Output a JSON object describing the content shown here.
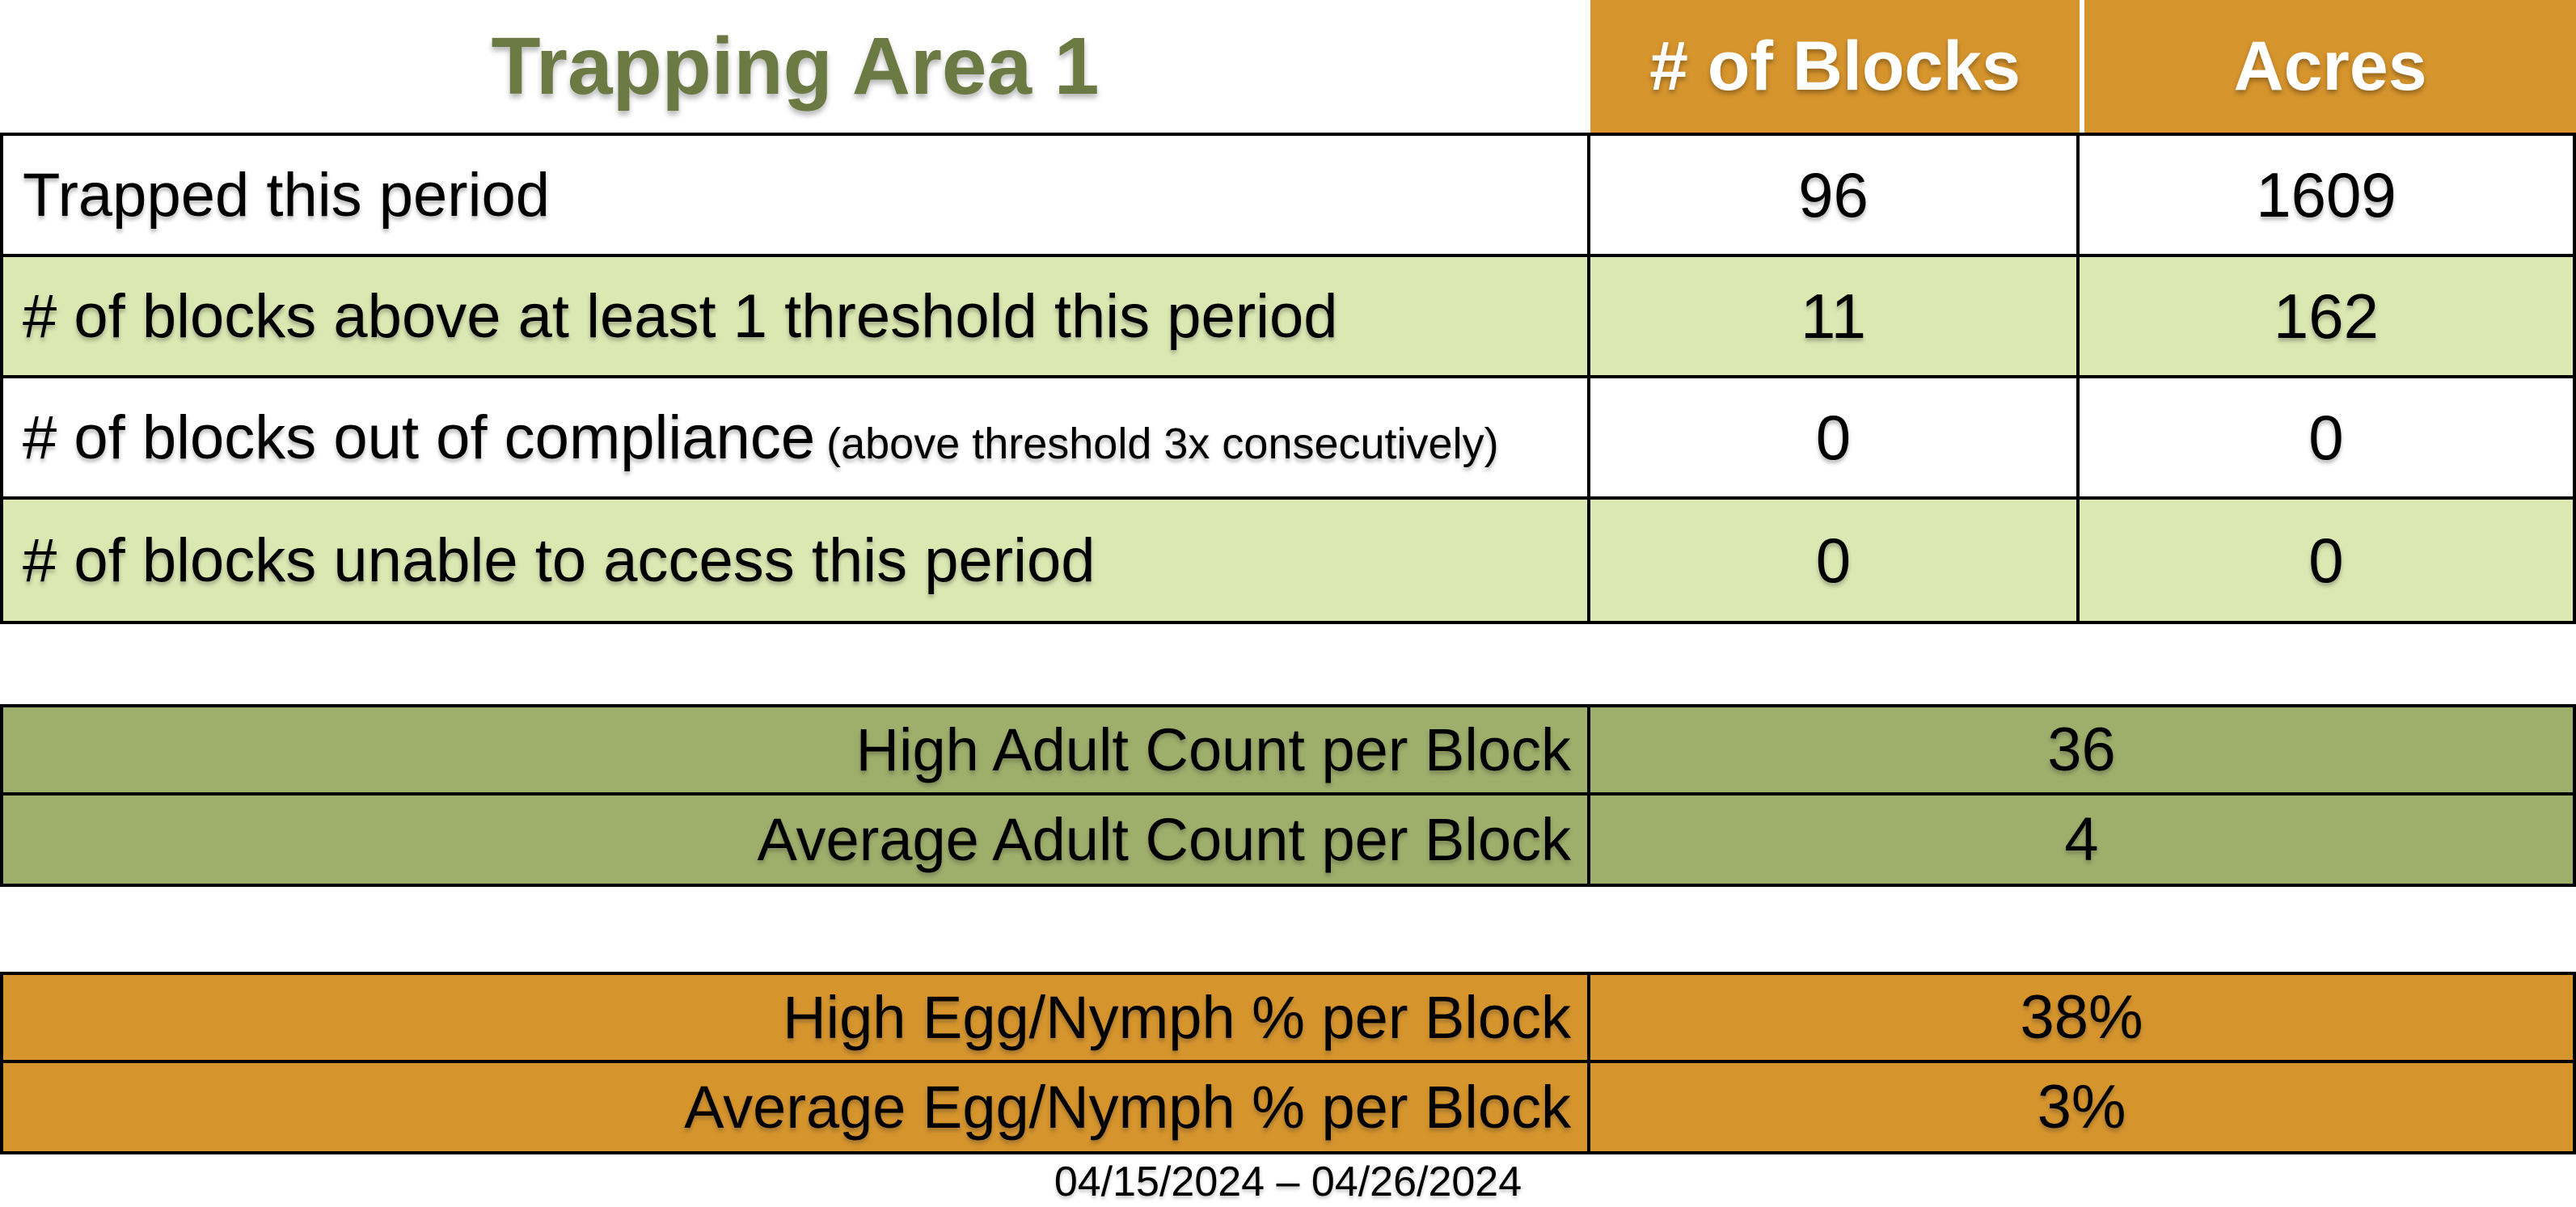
{
  "title": "Trapping Area 1",
  "columns": {
    "blocks": "# of Blocks",
    "acres": "Acres"
  },
  "main_table": {
    "rows": [
      {
        "label": "Trapped this period",
        "note": "",
        "blocks": "96",
        "acres": "1609"
      },
      {
        "label": "# of blocks above at least 1 threshold this period",
        "note": "",
        "blocks": "11",
        "acres": "162"
      },
      {
        "label": "# of blocks out of compliance",
        "note": "(above threshold 3x consecutively)",
        "blocks": "0",
        "acres": "0"
      },
      {
        "label": "# of blocks unable to access this period",
        "note": "",
        "blocks": "0",
        "acres": "0"
      }
    ]
  },
  "adult_table": {
    "rows": [
      {
        "label": "High Adult Count per Block",
        "value": "36"
      },
      {
        "label": "Average Adult Count per Block",
        "value": "4"
      }
    ]
  },
  "egg_table": {
    "rows": [
      {
        "label": "High Egg/Nymph % per Block",
        "value": "38%"
      },
      {
        "label": "Average Egg/Nymph % per Block",
        "value": "3%"
      }
    ]
  },
  "date_range": "04/15/2024 – 04/26/2024",
  "colors": {
    "header_orange": "#D6942D",
    "band_light_green": "#DCE8B2",
    "adult_olive": "#9EAE6B",
    "title_green": "#6B7A42",
    "border_black": "#000000",
    "header_text": "#ffffff"
  }
}
